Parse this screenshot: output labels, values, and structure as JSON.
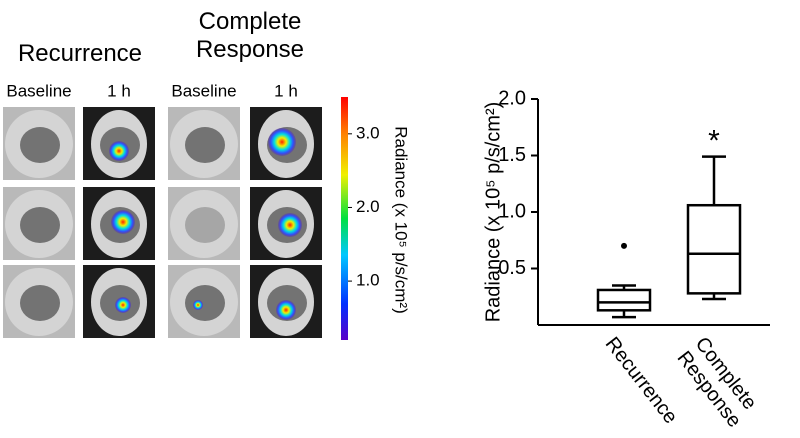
{
  "image_panel": {
    "groups": [
      {
        "title": "Recurrence",
        "columns": [
          "Baseline",
          "1 h"
        ]
      },
      {
        "title": "Complete Response",
        "columns": [
          "Baseline",
          "1 h"
        ]
      }
    ],
    "colorbar": {
      "label": "Radiance (x 10⁵ p/s/cm²)",
      "lim": [
        0.2,
        3.5
      ],
      "ticks": [
        {
          "value": 1,
          "label": "1.0"
        },
        {
          "value": 2,
          "label": "2.0"
        },
        {
          "value": 3,
          "label": "3.0"
        }
      ]
    }
  },
  "chart_data": {
    "type": "box",
    "categories": [
      "Recurrence",
      "Complete Response"
    ],
    "min": [
      0.07,
      0.23
    ],
    "q1": [
      0.13,
      0.28
    ],
    "median": [
      0.2,
      0.63
    ],
    "q3": [
      0.31,
      1.06
    ],
    "max": [
      0.35,
      1.49
    ],
    "outliers": [
      [
        0.7
      ],
      []
    ],
    "annotations": [
      {
        "category": 1,
        "text": "*"
      }
    ],
    "y_label": "Radiance (x 10⁵ p/s/cm²)",
    "ylim": [
      0,
      2.0
    ],
    "yticks": [
      0.5,
      {
        "value": 1,
        "label": "1.0"
      },
      1.5,
      {
        "value": 2,
        "label": "2.0"
      }
    ],
    "color": "#000000"
  }
}
